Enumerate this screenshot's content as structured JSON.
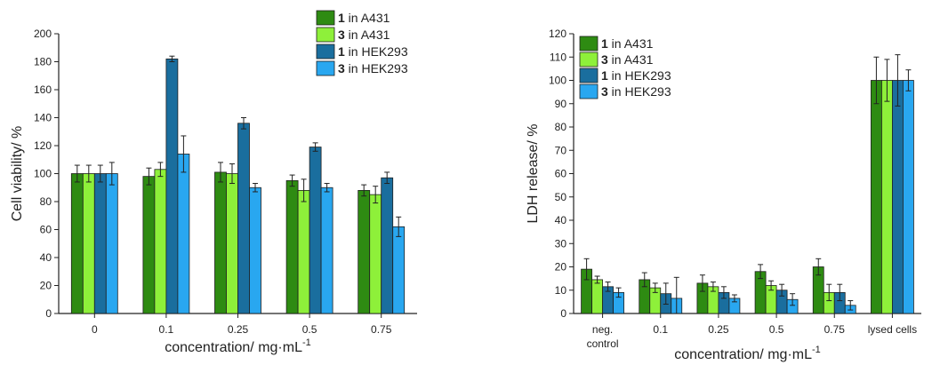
{
  "chart_data": [
    {
      "type": "bar",
      "xlabel": "concentration/ mg·mL",
      "xlabel_sup": "-1",
      "ylabel": "Cell viability/ %",
      "ylim": [
        0,
        200
      ],
      "yticks": [
        0,
        20,
        40,
        60,
        80,
        100,
        120,
        140,
        160,
        180,
        200
      ],
      "categories": [
        [
          "0"
        ],
        [
          "0.1"
        ],
        [
          "0.25"
        ],
        [
          "0.5"
        ],
        [
          "0.75"
        ]
      ],
      "legend_position": "top-right",
      "series": [
        {
          "name_num": "1",
          "name_rest": " in A431",
          "color": "#2e8b12",
          "values": [
            100,
            98,
            101,
            95,
            88
          ],
          "errors": [
            6,
            6,
            7,
            4,
            4
          ]
        },
        {
          "name_num": "3",
          "name_rest": " in A431",
          "color": "#8ef03a",
          "values": [
            100,
            103,
            100,
            88,
            85
          ],
          "errors": [
            6,
            5,
            7,
            8,
            6
          ]
        },
        {
          "name_num": "1",
          "name_rest": " in HEK293",
          "color": "#1a6e9e",
          "values": [
            100,
            182,
            136,
            119,
            97
          ],
          "errors": [
            6,
            2,
            4,
            3,
            4
          ]
        },
        {
          "name_num": "3",
          "name_rest": " in HEK293",
          "color": "#29a7f0",
          "values": [
            100,
            114,
            90,
            90,
            62
          ],
          "errors": [
            8,
            13,
            3,
            3,
            7
          ]
        }
      ]
    },
    {
      "type": "bar",
      "xlabel": "concentration/ mg·mL",
      "xlabel_sup": "-1",
      "ylabel": "LDH release/ %",
      "ylim": [
        0,
        120
      ],
      "yticks": [
        0,
        10,
        20,
        30,
        40,
        50,
        60,
        70,
        80,
        90,
        100,
        110,
        120
      ],
      "categories": [
        [
          "neg.",
          "control"
        ],
        [
          "0.1"
        ],
        [
          "0.25"
        ],
        [
          "0.5"
        ],
        [
          "0.75"
        ],
        [
          "lysed cells"
        ]
      ],
      "legend_position": "top-left",
      "series": [
        {
          "name_num": "1",
          "name_rest": " in A431",
          "color": "#2e8b12",
          "values": [
            19,
            14.5,
            13,
            18,
            20,
            100
          ],
          "errors": [
            4.5,
            3,
            3.5,
            3,
            3.5,
            10
          ]
        },
        {
          "name_num": "3",
          "name_rest": " in A431",
          "color": "#8ef03a",
          "values": [
            14.5,
            11,
            11.5,
            12,
            9,
            100
          ],
          "errors": [
            1.5,
            2,
            2,
            2,
            3.5,
            9
          ]
        },
        {
          "name_num": "1",
          "name_rest": " in HEK293",
          "color": "#1a6e9e",
          "values": [
            11.5,
            8.5,
            9,
            10,
            9,
            100
          ],
          "errors": [
            2,
            4.5,
            2.5,
            2.5,
            3.5,
            11
          ]
        },
        {
          "name_num": "3",
          "name_rest": " in HEK293",
          "color": "#29a7f0",
          "values": [
            9,
            6.5,
            6.5,
            6,
            3.5,
            100
          ],
          "errors": [
            2,
            9,
            1.5,
            2.5,
            2,
            4.5
          ]
        }
      ]
    }
  ]
}
